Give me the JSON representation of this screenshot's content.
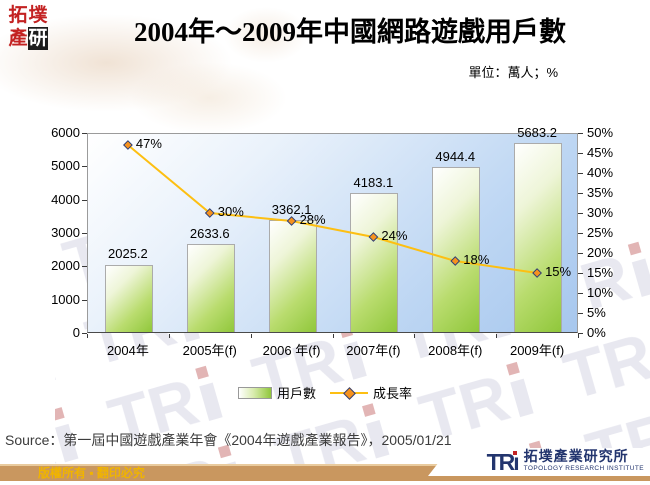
{
  "logo": {
    "chars": [
      "拓",
      "墣",
      "產",
      "研"
    ]
  },
  "header": {
    "title": "2004年～2009年中國網路遊戲用戶數",
    "unit_label": "單位：萬人；%"
  },
  "chart_data": {
    "type": "bar",
    "title": "2004年～2009年中國網路遊戲用戶數",
    "categories": [
      "2004年",
      "2005年(f)",
      "2006 年(f)",
      "2007年(f)",
      "2008年(f)",
      "2009年(f)"
    ],
    "series": [
      {
        "name": "用戶數",
        "type": "bar",
        "axis": "left",
        "color": "#90c73b",
        "values": [
          2025.2,
          2633.6,
          3362.1,
          4183.1,
          4944.4,
          5683.2
        ],
        "labels": [
          "2025.2",
          "2633.6",
          "3362.1",
          "4183.1",
          "4944.4",
          "5683.2"
        ]
      },
      {
        "name": "成長率",
        "type": "line",
        "axis": "right",
        "color": "#fdbf12",
        "values": [
          47,
          30,
          28,
          24,
          18,
          15
        ],
        "labels": [
          "47%",
          "30%",
          "28%",
          "24%",
          "18%",
          "15%"
        ]
      }
    ],
    "left_axis": {
      "min": 0,
      "max": 6000,
      "step": 1000,
      "ticks": [
        "0",
        "1000",
        "2000",
        "3000",
        "4000",
        "5000",
        "6000"
      ]
    },
    "right_axis": {
      "min": 0,
      "max": 50,
      "step": 5,
      "ticks": [
        "0%",
        "5%",
        "10%",
        "15%",
        "20%",
        "25%",
        "30%",
        "35%",
        "40%",
        "45%",
        "50%"
      ]
    },
    "grid": false,
    "legend_position": "bottom"
  },
  "legend": {
    "bar_label": "用戶數",
    "line_label": "成長率"
  },
  "source": {
    "text": "Source：第一屆中國遊戲產業年會《2004年遊戲產業報告》，2005/01/21"
  },
  "footer": {
    "copyright": "版權所有 ▪ 翻印必究",
    "logo_text": "TRı",
    "org_zh": "拓墣產業研究所",
    "org_en": "TOPOLOGY RESEARCH INSTITUTE"
  },
  "watermark": {
    "text": "TR"
  }
}
